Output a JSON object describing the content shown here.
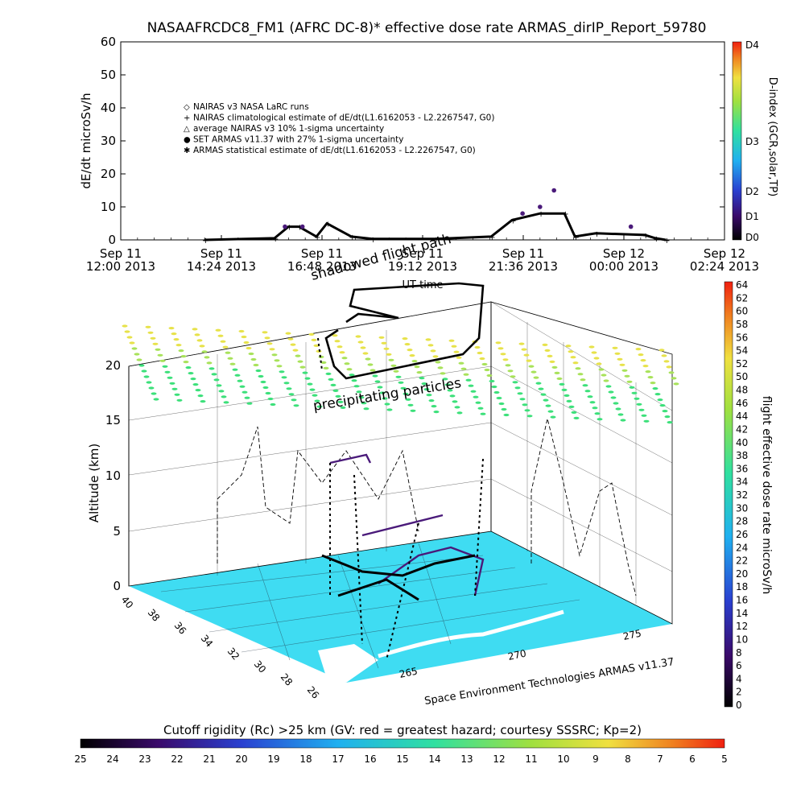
{
  "title": "NASAAFRCDC8_FM1 (AFRC DC-8)* effective dose rate ARMAS_dirIP_Report_59780",
  "top_panel": {
    "ylabel": "dE/dt microSv/h",
    "xlabel": "UT time",
    "yticks": [
      "0",
      "10",
      "20",
      "30",
      "40",
      "50",
      "60"
    ],
    "xticks_top": [
      "Sep 11",
      "Sep 11",
      "Sep 11",
      "Sep 11",
      "Sep 11",
      "Sep 12",
      "Sep 12"
    ],
    "xticks_bottom": [
      "12:00 2013",
      "14:24 2013",
      "16:48 2013",
      "19:12 2013",
      "21:36 2013",
      "00:00 2013",
      "02:24 2013"
    ],
    "legend": [
      {
        "symbol": "◇",
        "label": "NAIRAS v3 NASA LaRC runs"
      },
      {
        "symbol": "+",
        "label": "NAIRAS climatological estimate of dE/dt(L1.6162053 - L2.2267547, G0)"
      },
      {
        "symbol": "△",
        "label": "average NAIRAS v3 10% 1-sigma uncertainty"
      },
      {
        "symbol": "●",
        "label": "SET ARMAS v11.37 with 27% 1-sigma uncertainty"
      },
      {
        "symbol": "✱",
        "label": "ARMAS statistical estimate of dE/dt(L1.6162053 - L2.2267547, G0)"
      }
    ],
    "dindex_label": "D-index (GCR,solar,TP)",
    "dindex_ticks": [
      "D4",
      "D3",
      "D2",
      "D1",
      "D0"
    ]
  },
  "bottom_panel": {
    "ylabel": "Altitude (km)",
    "zticks": [
      "0",
      "5",
      "10",
      "15",
      "20"
    ],
    "lat_ticks": [
      "40",
      "38",
      "36",
      "34",
      "32",
      "30",
      "28",
      "26"
    ],
    "lon_ticks": [
      "265",
      "270",
      "275"
    ],
    "annotation_shadowed": "shadowed flight path",
    "annotation_precip": "precipitating particles",
    "credit": "Space Environment Technologies ARMAS v11.37",
    "colorbar_label": "flight effective dose rate microSv/h",
    "colorbar_ticks": [
      "0",
      "2",
      "4",
      "6",
      "8",
      "10",
      "12",
      "14",
      "16",
      "18",
      "20",
      "22",
      "24",
      "26",
      "28",
      "30",
      "32",
      "34",
      "36",
      "38",
      "40",
      "42",
      "44",
      "46",
      "48",
      "50",
      "52",
      "54",
      "56",
      "58",
      "60",
      "62",
      "64"
    ]
  },
  "cutoff_bar": {
    "label": "Cutoff rigidity (Rc) >25 km (GV: red = greatest hazard; courtesy SSSRC; Kp=2)",
    "ticks": [
      "25",
      "24",
      "23",
      "22",
      "21",
      "20",
      "19",
      "18",
      "17",
      "16",
      "15",
      "14",
      "13",
      "12",
      "11",
      "10",
      "9",
      "8",
      "7",
      "6",
      "5"
    ]
  },
  "colors": {
    "map_ocean": "#3fdcf2",
    "map_land": "#ffffff",
    "flight_path": "#000000",
    "high_points": "#4a1a7a",
    "precip_green": "#3ce07a",
    "precip_yellow": "#e7e24a"
  },
  "chart_data": [
    {
      "type": "scatter",
      "title": "NASAAFRCDC8_FM1 (AFRC DC-8)* effective dose rate ARMAS_dirIP_Report_59780",
      "xlabel": "UT time",
      "ylabel": "dE/dt microSv/h",
      "ylim": [
        0,
        60
      ],
      "xlim": [
        "2013-09-11 12:00",
        "2013-09-12 02:24"
      ],
      "series": [
        {
          "name": "NAIRAS climatological estimate of dE/dt(L1.6162053 - L2.2267547, G0)",
          "x": [
            "2013-09-11 14:00",
            "2013-09-11 15:40",
            "2013-09-11 16:00",
            "2013-09-11 16:15",
            "2013-09-11 16:40",
            "2013-09-11 16:55",
            "2013-09-11 17:30",
            "2013-09-11 18:00",
            "2013-09-11 19:30",
            "2013-09-11 20:50",
            "2013-09-11 21:20",
            "2013-09-11 22:00",
            "2013-09-11 22:35",
            "2013-09-11 22:50",
            "2013-09-11 23:20",
            "2013-09-12 00:30",
            "2013-09-12 00:45",
            "2013-09-12 01:00"
          ],
          "y": [
            0,
            0.5,
            4,
            4,
            1,
            5,
            1,
            0.3,
            0.3,
            1,
            6,
            8,
            8,
            1,
            2,
            1.5,
            0.5,
            0
          ]
        },
        {
          "name": "SET ARMAS v11.37 with 27% 1-sigma uncertainty",
          "x": [
            "2013-09-11 15:55",
            "2013-09-11 16:20",
            "2013-09-11 21:35",
            "2013-09-11 22:00",
            "2013-09-11 22:20",
            "2013-09-12 00:10"
          ],
          "y": [
            4,
            4,
            8,
            10,
            15,
            4
          ]
        }
      ]
    },
    {
      "type": "scatter",
      "title": "",
      "zlabel": "Altitude (km)",
      "zlim": [
        0,
        20
      ],
      "latitude_range": [
        26,
        40
      ],
      "longitude_range": [
        265,
        275
      ],
      "colorbar": {
        "label": "flight effective dose rate microSv/h",
        "range": [
          0,
          64
        ]
      }
    }
  ]
}
